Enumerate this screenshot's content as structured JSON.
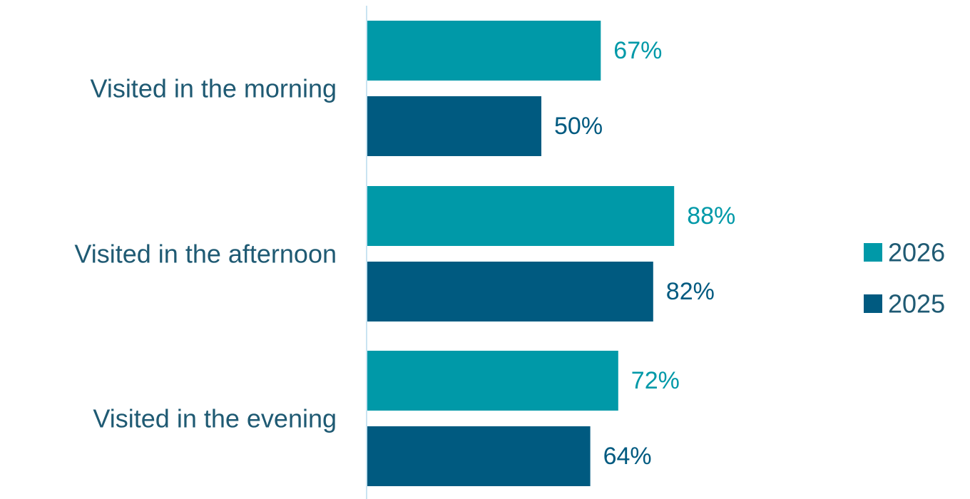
{
  "chart_data": {
    "type": "bar",
    "orientation": "horizontal",
    "categories": [
      "Visited in the morning",
      "Visited in the afternoon",
      "Visited in the evening"
    ],
    "series": [
      {
        "name": "2026",
        "values": [
          67,
          88,
          72
        ],
        "labels": [
          "67%",
          "88%",
          "72%"
        ],
        "color": "#0099a8"
      },
      {
        "name": "2025",
        "values": [
          50,
          82,
          64
        ],
        "labels": [
          "50%",
          "82%",
          "64%"
        ],
        "color": "#005a80"
      }
    ],
    "xlim": [
      0,
      100
    ],
    "grid": false,
    "legend_position": "right"
  },
  "colors": {
    "category_text": "#1f5a73",
    "axis_line": "#c9e4f2"
  }
}
